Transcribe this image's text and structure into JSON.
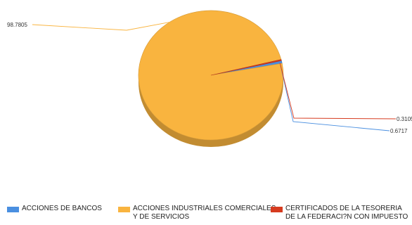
{
  "chart_data": {
    "type": "pie",
    "style": "3d",
    "categories": [
      "ACCIONES DE BANCOS",
      "ACCIONES INDUSTRIALES COMERCIALES\nY DE SERVICIOS",
      "CERTIFICADOS DE LA TESORERIA\nDE LA FEDERACI?N CON IMPUESTO"
    ],
    "values": [
      0.6717,
      98.7805,
      0.3105
    ],
    "data_labels": [
      "0.6717",
      "98.7805",
      "0.3105"
    ],
    "colors": [
      "#4a8fe0",
      "#f9b43f",
      "#d63b1f"
    ],
    "legend_position": "bottom"
  }
}
